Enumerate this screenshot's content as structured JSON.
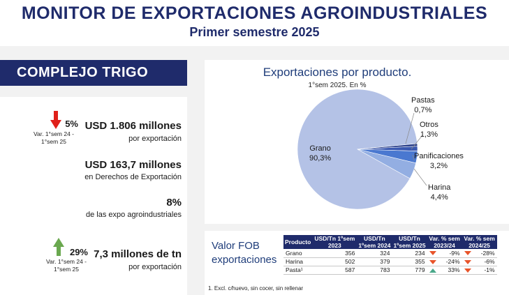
{
  "header": {
    "title": "MONITOR DE EXPORTACIONES AGROINDUSTRIALES",
    "subtitle": "Primer semestre 2025"
  },
  "banner": {
    "label": "COMPLEJO TRIGO"
  },
  "kpis": {
    "export_value": {
      "change": "5%",
      "direction": "down",
      "change_label": "Var.  1°sem 24 - 1°sem 25",
      "value": "USD 1.806 millones",
      "caption": "por exportación"
    },
    "duties": {
      "value": "USD 163,7 millones",
      "caption": "en Derechos de Exportación"
    },
    "share": {
      "value": "8%",
      "caption": "de las expo agroindustriales"
    },
    "volume": {
      "change": "29%",
      "direction": "up",
      "change_label": "Var.  1°sem 24 - 1°sem 25",
      "value": "7,3 millones de tn",
      "caption": "por exportación"
    }
  },
  "colors": {
    "navy": "#1f2b6b",
    "down": "#e0201a",
    "up": "#6aa84f"
  },
  "chart_data": {
    "type": "pie",
    "title": "Exportaciones por producto.",
    "subtitle": "1°sem 2025. En %",
    "slices": [
      {
        "label": "Grano",
        "value": 90.3,
        "value_label": "90,3%",
        "color": "#b4c2e6"
      },
      {
        "label": "Pastas",
        "value": 0.7,
        "value_label": "0,7%",
        "color": "#2a3f8a"
      },
      {
        "label": "Otros",
        "value": 1.3,
        "value_label": "1,3%",
        "color": "#3a58b0"
      },
      {
        "label": "Panificaciones",
        "value": 3.2,
        "value_label": "3,2%",
        "color": "#4a78d0"
      },
      {
        "label": "Harina",
        "value": 4.4,
        "value_label": "4,4%",
        "color": "#93aee2"
      }
    ]
  },
  "table": {
    "title_line1": "Valor FOB",
    "title_line2": "exportaciones",
    "headers_top": [
      "Producto",
      "USD/Tn 1ºsem",
      "USD/Tn",
      "USD/Tn",
      "Var. % sem",
      "Var. % sem"
    ],
    "headers_bottom": [
      "",
      "2023",
      "1ºsem 2024",
      "1ºsem 2025",
      "2023/24",
      "2024/25"
    ],
    "rows": [
      {
        "product": "Grano",
        "c2023": "356",
        "c2024": "324",
        "c2025": "234",
        "v1": "-9%",
        "v1dir": "down",
        "v2": "-28%",
        "v2dir": "down"
      },
      {
        "product": "Harina",
        "c2023": "502",
        "c2024": "379",
        "c2025": "355",
        "v1": "-24%",
        "v1dir": "down",
        "v2": "-6%",
        "v2dir": "down"
      },
      {
        "product": "Pasta¹",
        "c2023": "587",
        "c2024": "783",
        "c2025": "779",
        "v1": "33%",
        "v1dir": "up",
        "v2": "-1%",
        "v2dir": "down"
      }
    ],
    "footnote": "1. Excl. c/huevo, sin cocer, sin rellenar"
  }
}
